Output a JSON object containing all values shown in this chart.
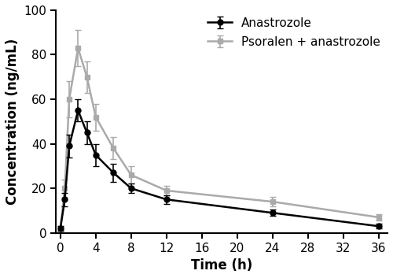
{
  "time": [
    0,
    0.5,
    1,
    2,
    3,
    4,
    6,
    8,
    12,
    24,
    36
  ],
  "anastrozole_mean": [
    2,
    15,
    39,
    55,
    45,
    35,
    27,
    20,
    15,
    9,
    3
  ],
  "anastrozole_sd": [
    1,
    3,
    5,
    5,
    5,
    5,
    4,
    2,
    2,
    1.5,
    1
  ],
  "psoralen_mean": [
    2,
    20,
    60,
    83,
    70,
    52,
    38,
    26,
    19,
    14,
    7
  ],
  "psoralen_sd": [
    1,
    4,
    8,
    8,
    7,
    6,
    5,
    4,
    2,
    2,
    1.5
  ],
  "anastrozole_color": "#000000",
  "psoralen_color": "#aaaaaa",
  "ylabel": "Concentration (ng/mL)",
  "xlabel": "Time (h)",
  "legend_anastrozole": "Anastrozole",
  "legend_psoralen": "Psoralen + anastrozole",
  "ylim": [
    0,
    100
  ],
  "xlim": [
    -0.5,
    37
  ],
  "xticks": [
    0,
    4,
    8,
    12,
    16,
    20,
    24,
    28,
    32,
    36
  ],
  "yticks": [
    0,
    20,
    40,
    60,
    80,
    100
  ],
  "background_color": "#ffffff",
  "linewidth": 1.8,
  "markersize": 5,
  "capsize": 3,
  "elinewidth": 1.2,
  "legend_fontsize": 11,
  "axis_fontsize": 12,
  "tick_fontsize": 11
}
